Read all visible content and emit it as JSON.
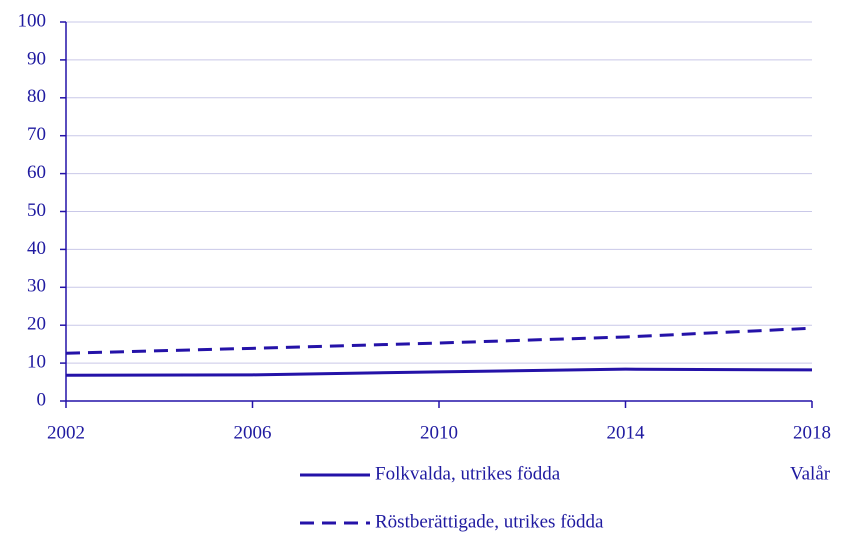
{
  "chart_data": {
    "type": "line",
    "x": [
      2002,
      2006,
      2010,
      2014,
      2018
    ],
    "xlim": [
      2002,
      2018
    ],
    "xticks": [
      2002,
      2006,
      2010,
      2014,
      2018
    ],
    "xlabel": "Valår",
    "ylim": [
      0,
      100
    ],
    "yticks": [
      0,
      10,
      20,
      30,
      40,
      50,
      60,
      70,
      80,
      90,
      100
    ],
    "grid": true,
    "series": [
      {
        "name": "Folkvalda, utrikes födda",
        "color": "#2412a8",
        "dash": false,
        "values": [
          6.8,
          6.9,
          7.7,
          8.4,
          8.2
        ]
      },
      {
        "name": "Röstberättigade, utrikes födda",
        "color": "#2412a8",
        "dash": true,
        "values": [
          12.6,
          13.9,
          15.3,
          16.9,
          19.2
        ]
      }
    ]
  }
}
